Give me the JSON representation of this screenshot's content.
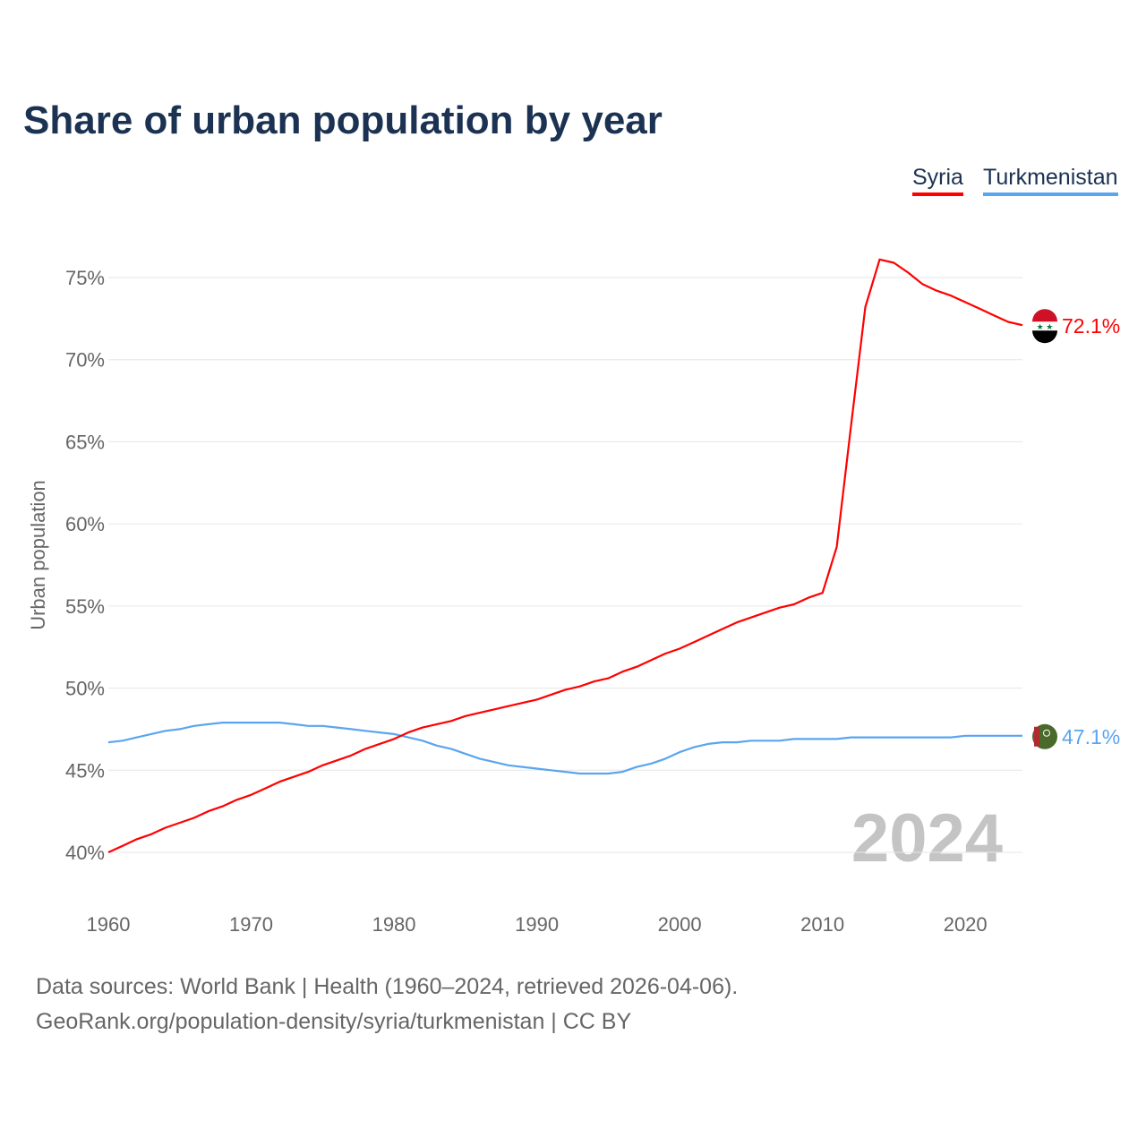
{
  "chart_data": {
    "type": "line",
    "title": "Share of urban population by year",
    "xlabel": "",
    "ylabel": "Urban population",
    "xlim": [
      1960,
      2024
    ],
    "ylim": [
      37,
      78
    ],
    "yticks": [
      40,
      45,
      50,
      55,
      60,
      65,
      70,
      75
    ],
    "ytick_labels": [
      "40%",
      "45%",
      "50%",
      "55%",
      "60%",
      "65%",
      "70%",
      "75%"
    ],
    "xticks": [
      1960,
      1970,
      1980,
      1990,
      2000,
      2010,
      2020
    ],
    "xtick_labels": [
      "1960",
      "1970",
      "1980",
      "1990",
      "2000",
      "2010",
      "2020"
    ],
    "grid": true,
    "legend_position": "top-right",
    "year_watermark": "2024",
    "x_start": 1960,
    "series": [
      {
        "name": "Syria",
        "color": "#ff0000",
        "end_label": "72.1%",
        "values": [
          40.0,
          40.4,
          40.8,
          41.1,
          41.5,
          41.8,
          42.1,
          42.5,
          42.8,
          43.2,
          43.5,
          43.9,
          44.3,
          44.6,
          44.9,
          45.3,
          45.6,
          45.9,
          46.3,
          46.6,
          46.9,
          47.3,
          47.6,
          47.8,
          48.0,
          48.3,
          48.5,
          48.7,
          48.9,
          49.1,
          49.3,
          49.6,
          49.9,
          50.1,
          50.4,
          50.6,
          51.0,
          51.3,
          51.7,
          52.1,
          52.4,
          52.8,
          53.2,
          53.6,
          54.0,
          54.3,
          54.6,
          54.9,
          55.1,
          55.5,
          55.8,
          58.6,
          66.0,
          73.2,
          76.1,
          75.9,
          75.3,
          74.6,
          74.2,
          73.9,
          73.5,
          73.1,
          72.7,
          72.3,
          72.1
        ]
      },
      {
        "name": "Turkmenistan",
        "color": "#5aa5ef",
        "end_label": "47.1%",
        "values": [
          46.7,
          46.8,
          47.0,
          47.2,
          47.4,
          47.5,
          47.7,
          47.8,
          47.9,
          47.9,
          47.9,
          47.9,
          47.9,
          47.8,
          47.7,
          47.7,
          47.6,
          47.5,
          47.4,
          47.3,
          47.2,
          47.0,
          46.8,
          46.5,
          46.3,
          46.0,
          45.7,
          45.5,
          45.3,
          45.2,
          45.1,
          45.0,
          44.9,
          44.8,
          44.8,
          44.8,
          44.9,
          45.2,
          45.4,
          45.7,
          46.1,
          46.4,
          46.6,
          46.7,
          46.7,
          46.8,
          46.8,
          46.8,
          46.9,
          46.9,
          46.9,
          46.9,
          47.0,
          47.0,
          47.0,
          47.0,
          47.0,
          47.0,
          47.0,
          47.0,
          47.1,
          47.1,
          47.1,
          47.1,
          47.1
        ]
      }
    ]
  },
  "source_line1": "Data sources: World Bank | Health (1960–2024, retrieved 2026-04-06).",
  "source_line2": "GeoRank.org/population-density/syria/turkmenistan | CC BY"
}
